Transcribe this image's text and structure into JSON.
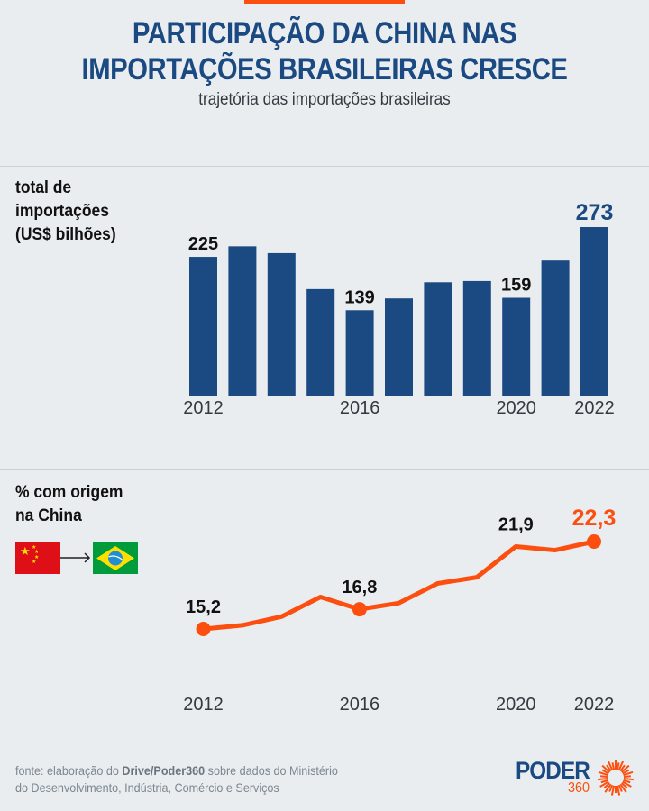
{
  "header": {
    "title_line1": "PARTICIPAÇÃO DA CHINA NAS",
    "title_line2": "IMPORTAÇÕES BRASILEIRAS CRESCE",
    "subtitle": "trajetória das importações brasileiras"
  },
  "colors": {
    "accent_orange": "#fc4f0f",
    "bar_blue": "#1b4a82",
    "title_blue": "#1b4a82",
    "background": "#eaedf0"
  },
  "chart_data": [
    {
      "type": "bar",
      "title": "total de importações (US$ bilhões)",
      "title_lines": [
        "total de",
        "importações",
        "(US$ bilhões)"
      ],
      "categories": [
        "2012",
        "2013",
        "2014",
        "2015",
        "2016",
        "2017",
        "2018",
        "2019",
        "2020",
        "2021",
        "2022"
      ],
      "values": [
        225,
        242,
        231,
        173,
        139,
        158,
        184,
        186,
        159,
        219,
        273
      ],
      "tick_labels": [
        {
          "index": 0,
          "label": "2012"
        },
        {
          "index": 4,
          "label": "2016"
        },
        {
          "index": 8,
          "label": "2020"
        },
        {
          "index": 10,
          "label": "2022"
        }
      ],
      "data_labels": [
        {
          "index": 0,
          "label": "225",
          "highlight": false
        },
        {
          "index": 4,
          "label": "139",
          "highlight": false
        },
        {
          "index": 8,
          "label": "159",
          "highlight": false
        },
        {
          "index": 10,
          "label": "273",
          "highlight": true
        }
      ],
      "xlabel": "",
      "ylabel": "",
      "ylim": [
        0,
        273
      ],
      "grid": false,
      "legend": "none"
    },
    {
      "type": "line",
      "title": "% com origem na China",
      "title_lines": [
        "% com origem",
        "na China"
      ],
      "x": [
        "2012",
        "2013",
        "2014",
        "2015",
        "2016",
        "2017",
        "2018",
        "2019",
        "2020",
        "2021",
        "2022"
      ],
      "values": [
        15.2,
        15.5,
        16.2,
        17.8,
        16.8,
        17.3,
        18.9,
        19.4,
        21.9,
        21.6,
        22.3
      ],
      "tick_labels": [
        {
          "index": 0,
          "label": "2012"
        },
        {
          "index": 4,
          "label": "2016"
        },
        {
          "index": 8,
          "label": "2020"
        },
        {
          "index": 10,
          "label": "2022"
        }
      ],
      "data_labels": [
        {
          "index": 0,
          "label": "15,2",
          "highlight": false,
          "marker": true
        },
        {
          "index": 4,
          "label": "16,8",
          "highlight": false,
          "marker": true
        },
        {
          "index": 8,
          "label": "21,9",
          "highlight": false,
          "marker": false
        },
        {
          "index": 10,
          "label": "22,3",
          "highlight": true,
          "marker": true
        }
      ],
      "xlabel": "",
      "ylabel": "",
      "ylim": [
        15.2,
        22.3
      ],
      "grid": false,
      "legend": "none",
      "icons": [
        "china-flag-icon",
        "arrow-right-icon",
        "brazil-flag-icon"
      ]
    }
  ],
  "footer": {
    "source_prefix": "fonte: elaboração do ",
    "source_bold": "Drive/Poder360",
    "source_suffix": " sobre dados do Ministério",
    "source_line2": "do Desenvolvimento, Indústria, Comércio e Serviços",
    "logo_word": "PODER",
    "logo_number": "360"
  }
}
